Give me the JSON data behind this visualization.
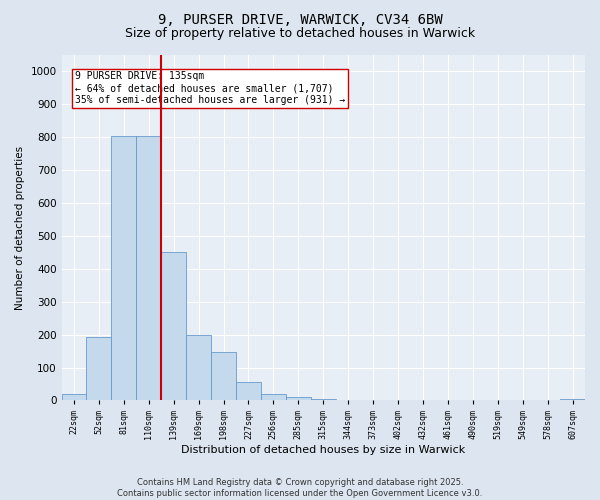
{
  "title_line1": "9, PURSER DRIVE, WARWICK, CV34 6BW",
  "title_line2": "Size of property relative to detached houses in Warwick",
  "xlabel": "Distribution of detached houses by size in Warwick",
  "ylabel": "Number of detached properties",
  "bar_labels": [
    "22sqm",
    "52sqm",
    "81sqm",
    "110sqm",
    "139sqm",
    "169sqm",
    "198sqm",
    "227sqm",
    "256sqm",
    "285sqm",
    "315sqm",
    "344sqm",
    "373sqm",
    "402sqm",
    "432sqm",
    "461sqm",
    "490sqm",
    "519sqm",
    "549sqm",
    "578sqm",
    "607sqm"
  ],
  "bar_values": [
    20,
    193,
    805,
    805,
    450,
    200,
    148,
    55,
    20,
    10,
    5,
    0,
    0,
    0,
    0,
    0,
    0,
    0,
    0,
    0,
    5
  ],
  "bar_color": "#c5d9ed",
  "bar_edge_color": "#6699cc",
  "vline_color": "#cc0000",
  "ylim": [
    0,
    1050
  ],
  "yticks": [
    0,
    100,
    200,
    300,
    400,
    500,
    600,
    700,
    800,
    900,
    1000
  ],
  "annotation_text": "9 PURSER DRIVE: 135sqm\n← 64% of detached houses are smaller (1,707)\n35% of semi-detached houses are larger (931) →",
  "annotation_box_color": "#ffffff",
  "annotation_box_edge": "#cc0000",
  "bg_color": "#dde6f0",
  "plot_bg_color": "#e8eef5",
  "footer_text": "Contains HM Land Registry data © Crown copyright and database right 2025.\nContains public sector information licensed under the Open Government Licence v3.0.",
  "title_fontsize": 10,
  "subtitle_fontsize": 9,
  "annotation_fontsize": 7,
  "footer_fontsize": 6,
  "ylabel_fontsize": 7.5,
  "xlabel_fontsize": 8
}
